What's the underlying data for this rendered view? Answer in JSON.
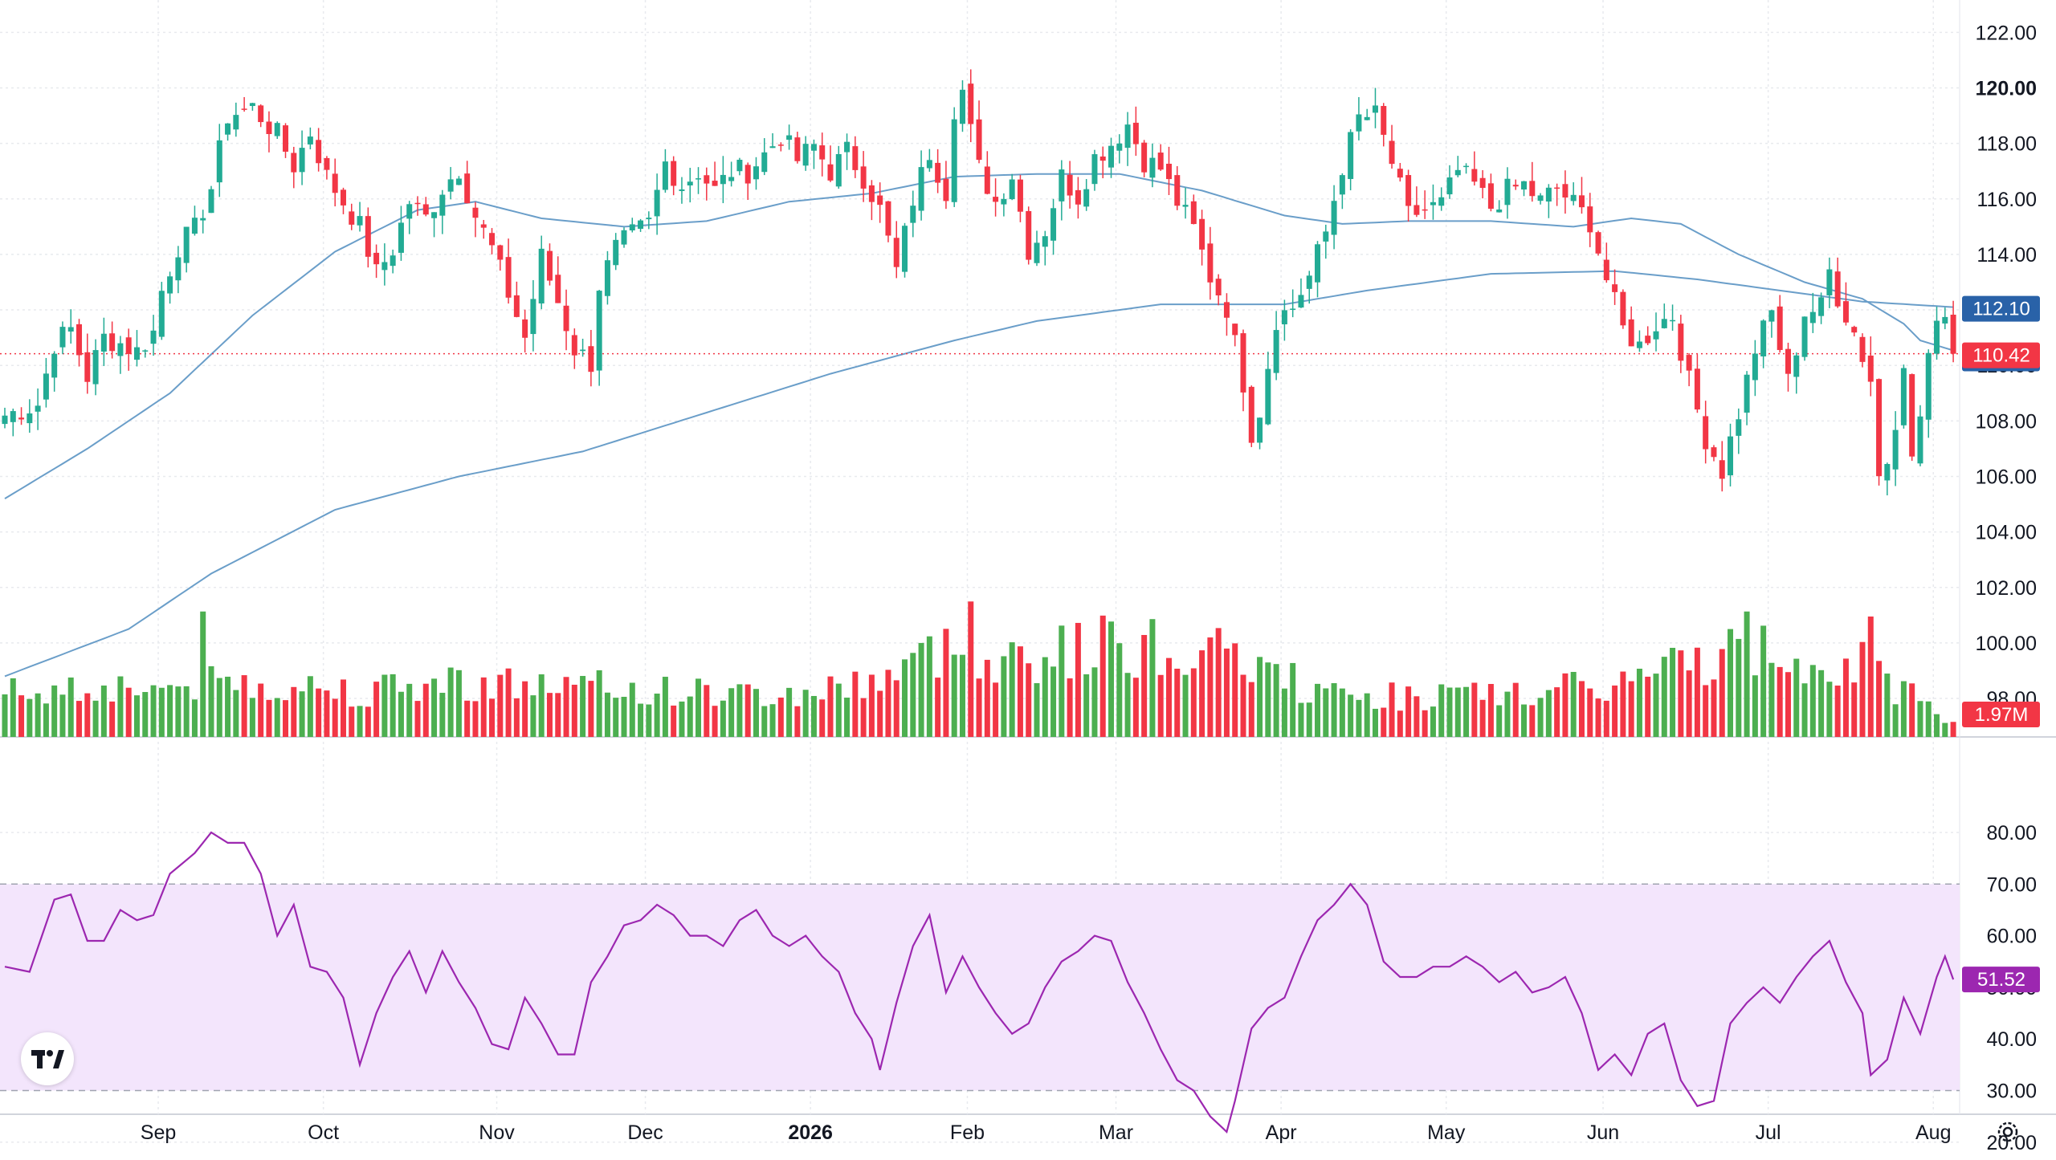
{
  "chart_data": {
    "type": "candlestick",
    "price_axis": {
      "ticks": [
        "122.00",
        "120.00",
        "118.00",
        "116.00",
        "114.00",
        "112.00",
        "110.00",
        "108.00",
        "106.00",
        "104.00",
        "102.00",
        "100.00",
        "98.00"
      ],
      "bold_tick": "120.00",
      "range": [
        97.0,
        123.0
      ]
    },
    "rsi_axis": {
      "ticks": [
        "80.00",
        "70.00",
        "60.00",
        "50.00",
        "40.00",
        "30.00",
        "20.00"
      ],
      "range": [
        17,
        86
      ],
      "band": [
        30,
        70
      ]
    },
    "time_axis": {
      "labels": [
        {
          "text": "Sep",
          "bold": false,
          "index": 18
        },
        {
          "text": "Oct",
          "bold": false,
          "index": 38
        },
        {
          "text": "Nov",
          "bold": false,
          "index": 59
        },
        {
          "text": "Dec",
          "bold": false,
          "index": 77
        },
        {
          "text": "2026",
          "bold": true,
          "index": 97
        },
        {
          "text": "Feb",
          "bold": false,
          "index": 116
        },
        {
          "text": "Mar",
          "bold": false,
          "index": 134
        },
        {
          "text": "Apr",
          "bold": false,
          "index": 154
        },
        {
          "text": "May",
          "bold": false,
          "index": 174
        },
        {
          "text": "Jun",
          "bold": false,
          "index": 193
        },
        {
          "text": "Jul",
          "bold": false,
          "index": 213
        },
        {
          "text": "Aug",
          "bold": false,
          "index": 233
        }
      ]
    },
    "price_keypoints": [
      [
        0,
        108.2
      ],
      [
        4,
        108.6
      ],
      [
        6,
        110.8
      ],
      [
        8,
        111.3
      ],
      [
        10,
        109.6
      ],
      [
        12,
        111.0
      ],
      [
        14,
        110.8
      ],
      [
        16,
        110.5
      ],
      [
        18,
        111.2
      ],
      [
        19,
        112.7
      ],
      [
        21,
        114.3
      ],
      [
        23,
        114.9
      ],
      [
        25,
        116.4
      ],
      [
        27,
        119.0
      ],
      [
        30,
        119.3
      ],
      [
        33,
        118.3
      ],
      [
        35,
        117.2
      ],
      [
        37,
        118.4
      ],
      [
        39,
        116.8
      ],
      [
        41,
        115.9
      ],
      [
        43,
        115.0
      ],
      [
        45,
        113.3
      ],
      [
        47,
        114.2
      ],
      [
        49,
        115.9
      ],
      [
        51,
        115.3
      ],
      [
        53,
        116.4
      ],
      [
        55,
        117.1
      ],
      [
        57,
        115.4
      ],
      [
        59,
        114.2
      ],
      [
        61,
        112.6
      ],
      [
        63,
        111.0
      ],
      [
        65,
        113.9
      ],
      [
        67,
        112.3
      ],
      [
        69,
        110.6
      ],
      [
        71,
        110.1
      ],
      [
        72,
        112.9
      ],
      [
        74,
        114.2
      ],
      [
        76,
        114.7
      ],
      [
        78,
        115.1
      ],
      [
        80,
        117.3
      ],
      [
        82,
        116.5
      ],
      [
        84,
        117.0
      ],
      [
        86,
        116.3
      ],
      [
        88,
        117.0
      ],
      [
        90,
        117.0
      ],
      [
        92,
        117.6
      ],
      [
        94,
        118.3
      ],
      [
        96,
        117.4
      ],
      [
        98,
        117.9
      ],
      [
        100,
        117.0
      ],
      [
        102,
        117.7
      ],
      [
        104,
        116.8
      ],
      [
        106,
        115.6
      ],
      [
        108,
        113.4
      ],
      [
        110,
        116.0
      ],
      [
        112,
        117.7
      ],
      [
        114,
        116.3
      ],
      [
        115,
        119.3
      ],
      [
        116,
        119.9
      ],
      [
        117,
        118.4
      ],
      [
        118,
        117.1
      ],
      [
        120,
        115.9
      ],
      [
        122,
        116.9
      ],
      [
        124,
        114.2
      ],
      [
        126,
        114.9
      ],
      [
        128,
        116.8
      ],
      [
        130,
        116.1
      ],
      [
        132,
        117.5
      ],
      [
        134,
        118.0
      ],
      [
        136,
        118.7
      ],
      [
        138,
        117.4
      ],
      [
        140,
        117.1
      ],
      [
        142,
        115.9
      ],
      [
        144,
        114.9
      ],
      [
        146,
        113.2
      ],
      [
        148,
        112.1
      ],
      [
        150,
        109.4
      ],
      [
        151,
        107.6
      ],
      [
        152,
        108.4
      ],
      [
        154,
        111.7
      ],
      [
        156,
        112.1
      ],
      [
        158,
        113.2
      ],
      [
        160,
        114.8
      ],
      [
        162,
        117.2
      ],
      [
        164,
        118.9
      ],
      [
        166,
        119.0
      ],
      [
        168,
        117.3
      ],
      [
        170,
        115.4
      ],
      [
        172,
        115.6
      ],
      [
        174,
        115.8
      ],
      [
        176,
        117.0
      ],
      [
        178,
        116.5
      ],
      [
        180,
        115.7
      ],
      [
        182,
        116.3
      ],
      [
        184,
        116.5
      ],
      [
        186,
        115.9
      ],
      [
        188,
        116.4
      ],
      [
        190,
        115.8
      ],
      [
        192,
        115.2
      ],
      [
        194,
        113.1
      ],
      [
        196,
        111.3
      ],
      [
        198,
        110.7
      ],
      [
        200,
        111.5
      ],
      [
        202,
        111.8
      ],
      [
        204,
        109.4
      ],
      [
        206,
        107.4
      ],
      [
        208,
        106.2
      ],
      [
        209,
        107.3
      ],
      [
        210,
        108.3
      ],
      [
        212,
        110.6
      ],
      [
        214,
        111.9
      ],
      [
        216,
        109.4
      ],
      [
        218,
        111.9
      ],
      [
        220,
        112.1
      ],
      [
        221,
        113.4
      ],
      [
        222,
        112.5
      ],
      [
        224,
        111.2
      ],
      [
        226,
        109.5
      ],
      [
        227,
        106.0
      ],
      [
        228,
        106.6
      ],
      [
        229,
        108.1
      ],
      [
        230,
        110.3
      ],
      [
        231,
        106.5
      ],
      [
        232,
        108.2
      ],
      [
        233,
        110.4
      ],
      [
        235,
        112.1
      ],
      [
        236,
        110.42
      ]
    ],
    "volume_keypoints": [
      [
        0,
        0.45
      ],
      [
        15,
        0.5
      ],
      [
        20,
        0.48
      ],
      [
        25,
        0.55
      ],
      [
        35,
        0.5
      ],
      [
        45,
        0.45
      ],
      [
        55,
        0.55
      ],
      [
        65,
        0.5
      ],
      [
        80,
        0.45
      ],
      [
        95,
        0.4
      ],
      [
        105,
        0.55
      ],
      [
        114,
        0.85
      ],
      [
        120,
        0.75
      ],
      [
        135,
        0.9
      ],
      [
        150,
        0.75
      ],
      [
        160,
        0.4
      ],
      [
        180,
        0.4
      ],
      [
        195,
        0.5
      ],
      [
        205,
        0.75
      ],
      [
        213,
        0.85
      ],
      [
        225,
        0.7
      ],
      [
        236,
        0.15
      ]
    ],
    "volume_spikes": {
      "24": 1.25,
      "117": 1.35,
      "134": 1.15,
      "211": 1.25,
      "226": 1.2
    },
    "ma_short_keypoints": [
      [
        0,
        105.2
      ],
      [
        10,
        107.0
      ],
      [
        20,
        109.0
      ],
      [
        30,
        111.8
      ],
      [
        40,
        114.1
      ],
      [
        50,
        115.6
      ],
      [
        57,
        115.9
      ],
      [
        65,
        115.3
      ],
      [
        75,
        115.0
      ],
      [
        85,
        115.2
      ],
      [
        95,
        115.9
      ],
      [
        105,
        116.2
      ],
      [
        115,
        116.8
      ],
      [
        125,
        116.9
      ],
      [
        135,
        116.9
      ],
      [
        145,
        116.3
      ],
      [
        155,
        115.4
      ],
      [
        162,
        115.1
      ],
      [
        170,
        115.2
      ],
      [
        180,
        115.2
      ],
      [
        190,
        115.0
      ],
      [
        197,
        115.3
      ],
      [
        203,
        115.1
      ],
      [
        210,
        114.0
      ],
      [
        218,
        113.0
      ],
      [
        225,
        112.4
      ],
      [
        230,
        111.5
      ],
      [
        232,
        110.9
      ],
      [
        236,
        110.54
      ]
    ],
    "ma_long_keypoints": [
      [
        0,
        98.8
      ],
      [
        15,
        100.5
      ],
      [
        25,
        102.5
      ],
      [
        40,
        104.8
      ],
      [
        55,
        106.0
      ],
      [
        70,
        106.9
      ],
      [
        85,
        108.3
      ],
      [
        100,
        109.7
      ],
      [
        115,
        110.9
      ],
      [
        125,
        111.6
      ],
      [
        140,
        112.2
      ],
      [
        155,
        112.2
      ],
      [
        165,
        112.7
      ],
      [
        180,
        113.3
      ],
      [
        195,
        113.4
      ],
      [
        205,
        113.1
      ],
      [
        215,
        112.7
      ],
      [
        225,
        112.3
      ],
      [
        236,
        112.1
      ]
    ],
    "rsi_keypoints": [
      [
        0,
        54
      ],
      [
        3,
        53
      ],
      [
        6,
        67
      ],
      [
        8,
        68
      ],
      [
        10,
        59
      ],
      [
        12,
        59
      ],
      [
        14,
        65
      ],
      [
        16,
        63
      ],
      [
        18,
        64
      ],
      [
        20,
        72
      ],
      [
        23,
        76
      ],
      [
        25,
        80
      ],
      [
        27,
        78
      ],
      [
        29,
        78
      ],
      [
        31,
        72
      ],
      [
        33,
        60
      ],
      [
        35,
        66
      ],
      [
        37,
        54
      ],
      [
        39,
        53
      ],
      [
        41,
        48
      ],
      [
        43,
        35
      ],
      [
        45,
        45
      ],
      [
        47,
        52
      ],
      [
        49,
        57
      ],
      [
        51,
        49
      ],
      [
        53,
        57
      ],
      [
        55,
        51
      ],
      [
        57,
        46
      ],
      [
        59,
        39
      ],
      [
        61,
        38
      ],
      [
        63,
        48
      ],
      [
        65,
        43
      ],
      [
        67,
        37
      ],
      [
        69,
        37
      ],
      [
        71,
        51
      ],
      [
        73,
        56
      ],
      [
        75,
        62
      ],
      [
        77,
        63
      ],
      [
        79,
        66
      ],
      [
        81,
        64
      ],
      [
        83,
        60
      ],
      [
        85,
        60
      ],
      [
        87,
        58
      ],
      [
        89,
        63
      ],
      [
        91,
        65
      ],
      [
        93,
        60
      ],
      [
        95,
        58
      ],
      [
        97,
        60
      ],
      [
        99,
        56
      ],
      [
        101,
        53
      ],
      [
        103,
        45
      ],
      [
        105,
        40
      ],
      [
        106,
        34
      ],
      [
        108,
        47
      ],
      [
        110,
        58
      ],
      [
        112,
        64
      ],
      [
        114,
        49
      ],
      [
        116,
        56
      ],
      [
        118,
        50
      ],
      [
        120,
        45
      ],
      [
        122,
        41
      ],
      [
        124,
        43
      ],
      [
        126,
        50
      ],
      [
        128,
        55
      ],
      [
        130,
        57
      ],
      [
        132,
        60
      ],
      [
        134,
        59
      ],
      [
        136,
        51
      ],
      [
        138,
        45
      ],
      [
        140,
        38
      ],
      [
        142,
        32
      ],
      [
        144,
        30
      ],
      [
        146,
        25
      ],
      [
        148,
        22
      ],
      [
        149,
        28
      ],
      [
        151,
        42
      ],
      [
        153,
        46
      ],
      [
        155,
        48
      ],
      [
        157,
        56
      ],
      [
        159,
        63
      ],
      [
        161,
        66
      ],
      [
        163,
        70
      ],
      [
        165,
        66
      ],
      [
        167,
        55
      ],
      [
        169,
        52
      ],
      [
        171,
        52
      ],
      [
        173,
        54
      ],
      [
        175,
        54
      ],
      [
        177,
        56
      ],
      [
        179,
        54
      ],
      [
        181,
        51
      ],
      [
        183,
        53
      ],
      [
        185,
        49
      ],
      [
        187,
        50
      ],
      [
        189,
        52
      ],
      [
        191,
        45
      ],
      [
        193,
        34
      ],
      [
        195,
        37
      ],
      [
        197,
        33
      ],
      [
        199,
        41
      ],
      [
        201,
        43
      ],
      [
        203,
        32
      ],
      [
        205,
        27
      ],
      [
        207,
        28
      ],
      [
        209,
        43
      ],
      [
        211,
        47
      ],
      [
        213,
        50
      ],
      [
        215,
        47
      ],
      [
        217,
        52
      ],
      [
        219,
        56
      ],
      [
        221,
        59
      ],
      [
        223,
        51
      ],
      [
        225,
        45
      ],
      [
        226,
        33
      ],
      [
        228,
        36
      ],
      [
        230,
        48
      ],
      [
        232,
        41
      ],
      [
        234,
        52
      ],
      [
        235,
        56
      ],
      [
        236,
        51.52
      ]
    ],
    "badges": {
      "ma_long": {
        "text": "112.10",
        "color": "#2962a8"
      },
      "ma_short": {
        "text": "110.54",
        "color": "#2962a8"
      },
      "last_price": {
        "text": "110.42",
        "color": "#f23645"
      },
      "volume": {
        "text": "1.97M",
        "color": "#f23645"
      },
      "rsi": {
        "text": "51.52",
        "color": "#9c27b0"
      }
    },
    "last_price": 110.42,
    "last_volume_label": "1.97M",
    "last_rsi": 51.52,
    "colors": {
      "up": "#22ab94",
      "up_volume": "#4caf50",
      "down": "#f23645",
      "ma_line": "#6a9ec9",
      "rsi_line": "#9c27b0",
      "rsi_band": "#f3e5fc",
      "grid": "#e8eaee",
      "price_line": "#f23645"
    }
  },
  "ui": {
    "logo_icon": "tradingview-logo-icon",
    "settings_icon": "gear-icon"
  }
}
